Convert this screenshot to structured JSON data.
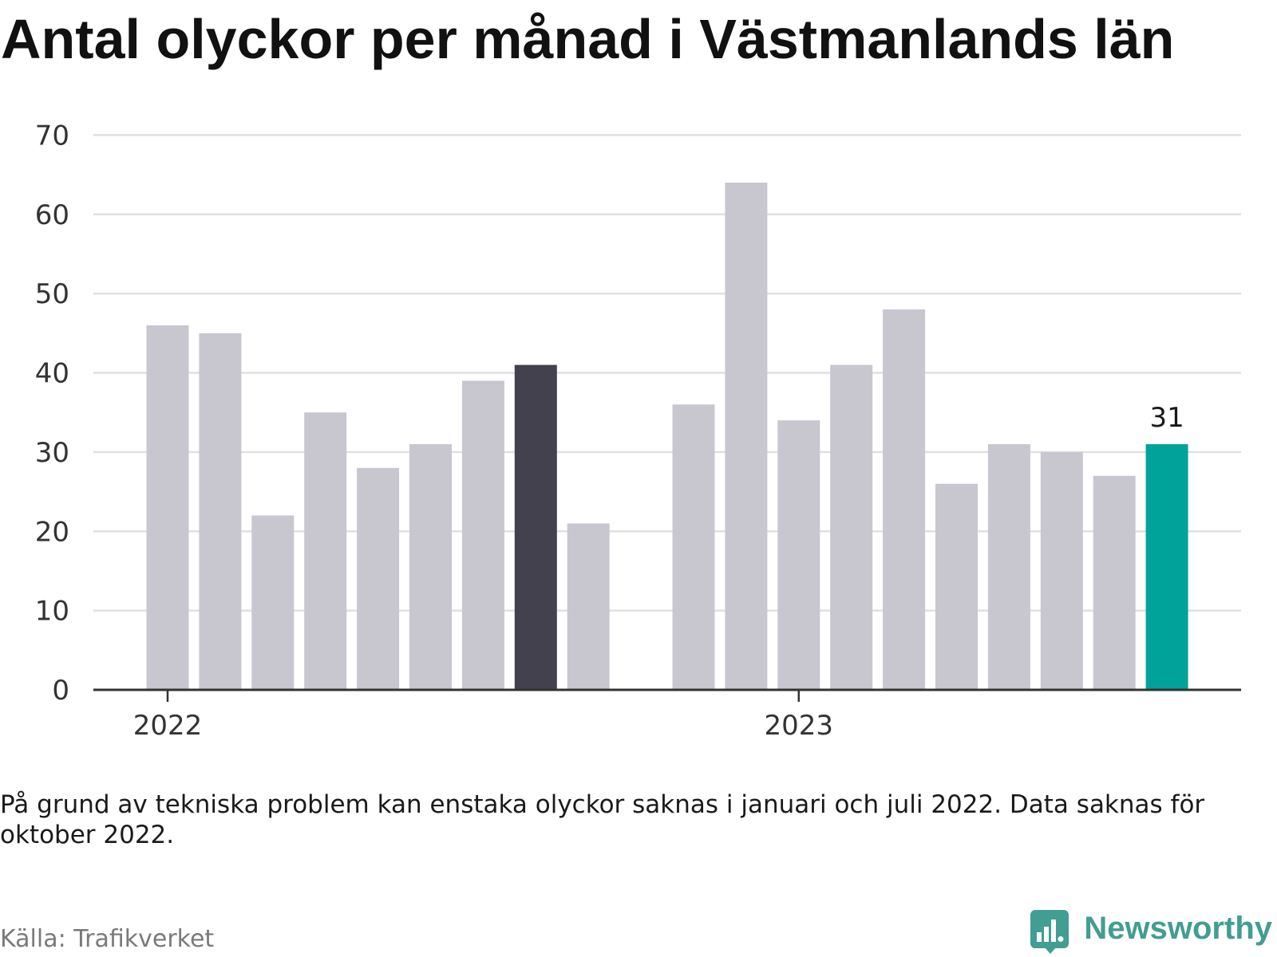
{
  "chart_data": {
    "type": "bar",
    "title": "Antal olyckor per månad i Västmanlands län",
    "x": [
      "2022-01",
      "2022-02",
      "2022-03",
      "2022-04",
      "2022-05",
      "2022-06",
      "2022-07",
      "2022-08",
      "2022-09",
      "2022-11",
      "2022-12",
      "2023-01",
      "2023-02",
      "2023-03",
      "2023-04",
      "2023-05",
      "2023-06",
      "2023-07",
      "2023-08"
    ],
    "values": [
      46,
      45,
      22,
      35,
      28,
      31,
      39,
      41,
      21,
      36,
      64,
      34,
      41,
      48,
      26,
      31,
      30,
      27,
      31
    ],
    "ylim": [
      0,
      70
    ],
    "y_ticks": [
      0,
      10,
      20,
      30,
      40,
      50,
      60,
      70
    ],
    "x_ticks": [
      "2022",
      "2023"
    ],
    "grid": true,
    "colors": {
      "bar": "#c8c7d0",
      "highlight": {
        "2022-08": "#43414e",
        "2023-08": "#00a39a"
      },
      "grid": "#e1e1e1",
      "axis": "#333333"
    },
    "data_labels": [
      {
        "x": "2023-08",
        "text": "31"
      }
    ],
    "note": "På grund av tekniska problem kan enstaka olyckor saknas i januari och juli 2022. Data saknas för oktober 2022.",
    "source": "Källa: Trafikverket"
  },
  "branding": {
    "logo_text": "Newsworthy",
    "logo_icon": "bar-chart-bubble-icon",
    "color": "#429d92"
  }
}
